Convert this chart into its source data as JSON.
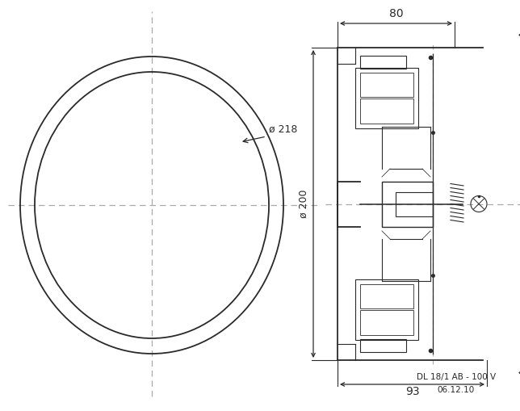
{
  "bg_color": "#ffffff",
  "line_color": "#2a2a2a",
  "dash_color": "#aaaaaa",
  "fig_width": 6.44,
  "fig_height": 5.09,
  "dpi": 100,
  "caption_line1": "DL 18/1 AB - 100 V",
  "caption_line2": "06.12.10",
  "dim_80": "80",
  "dim_93": "93",
  "dim_200": "ø 200",
  "dim_218": "ø 218"
}
